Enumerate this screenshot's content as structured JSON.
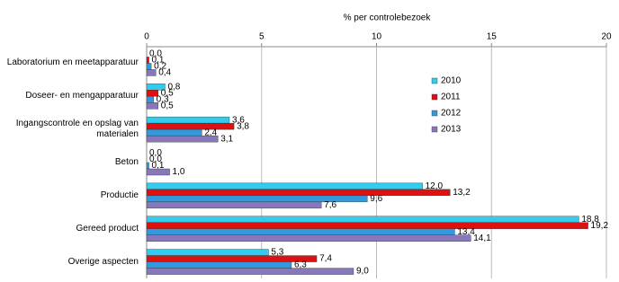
{
  "chart_data": {
    "type": "hbar",
    "x_label": "% per controlebezoek",
    "categories": [
      "Laboratorium en meetapparatuur",
      "Doseer- en mengapparatuur",
      "Ingangscontrole en opslag van materialen",
      "Beton",
      "Productie",
      "Gereed product",
      "Overige aspecten"
    ],
    "series": [
      {
        "name": "2010",
        "color": "#33ccee",
        "values": [
          0.0,
          0.8,
          3.6,
          0.0,
          12.0,
          18.8,
          5.3
        ],
        "value_labels": [
          "0,0",
          "0,8",
          "3,6",
          "0,0",
          "12,0",
          "18,8",
          "5,3"
        ]
      },
      {
        "name": "2011",
        "color": "#dd1111",
        "values": [
          0.1,
          0.5,
          3.8,
          0.0,
          13.2,
          19.2,
          7.4
        ],
        "value_labels": [
          "0,1",
          "0,5",
          "3,8",
          "0,0",
          "13,2",
          "19,2",
          "7,4"
        ]
      },
      {
        "name": "2012",
        "color": "#3399dd",
        "values": [
          0.2,
          0.3,
          2.4,
          0.1,
          9.6,
          13.4,
          6.3
        ],
        "value_labels": [
          "0,2",
          "0,3",
          "2,4",
          "0,1",
          "9,6",
          "13,4",
          "6,3"
        ]
      },
      {
        "name": "2013",
        "color": "#8877bb",
        "values": [
          0.4,
          0.5,
          3.1,
          1.0,
          7.6,
          14.1,
          9.0
        ],
        "value_labels": [
          "0,4",
          "0,5",
          "3,1",
          "1,0",
          "7,6",
          "14,1",
          "9,0"
        ]
      }
    ],
    "xlim": [
      0,
      20
    ],
    "xticks": [
      0,
      5,
      10,
      15,
      20
    ],
    "grid": true
  }
}
